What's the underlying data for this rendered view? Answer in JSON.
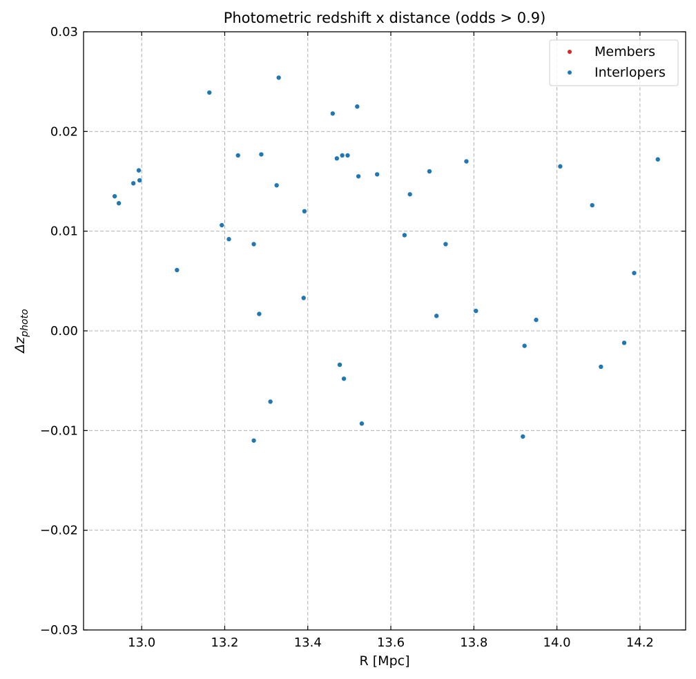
{
  "chart_data": {
    "type": "scatter",
    "title": "Photometric redshift x distance (odds > 0.9)",
    "xlabel": "R [Mpc]",
    "ylabel": "Δz",
    "ylabel_subscript": "photo",
    "xlim": [
      12.86,
      14.31
    ],
    "ylim": [
      -0.03,
      0.03
    ],
    "x_ticks": [
      13.0,
      13.2,
      13.4,
      13.6,
      13.8,
      14.0,
      14.2
    ],
    "x_tick_labels": [
      "13.0",
      "13.2",
      "13.4",
      "13.6",
      "13.8",
      "14.0",
      "14.2"
    ],
    "y_ticks": [
      -0.03,
      -0.02,
      -0.01,
      0.0,
      0.01,
      0.02,
      0.03
    ],
    "y_tick_labels": [
      "−0.03",
      "−0.02",
      "−0.01",
      "0.00",
      "0.01",
      "0.02",
      "0.03"
    ],
    "grid": true,
    "legend_position": "top-right",
    "series": [
      {
        "name": "Members",
        "color": "#d62728",
        "points": []
      },
      {
        "name": "Interlopers",
        "color": "#1f77b4",
        "points": [
          [
            12.935,
            0.0135
          ],
          [
            12.945,
            0.0128
          ],
          [
            12.98,
            0.0148
          ],
          [
            12.993,
            0.0161
          ],
          [
            12.995,
            0.0151
          ],
          [
            13.085,
            0.0061
          ],
          [
            13.163,
            0.0239
          ],
          [
            13.193,
            0.0106
          ],
          [
            13.21,
            0.0092
          ],
          [
            13.232,
            0.0176
          ],
          [
            13.27,
            0.0087
          ],
          [
            13.27,
            -0.011
          ],
          [
            13.283,
            0.0017
          ],
          [
            13.288,
            0.0177
          ],
          [
            13.31,
            -0.0071
          ],
          [
            13.325,
            0.0146
          ],
          [
            13.33,
            0.0254
          ],
          [
            13.39,
            0.0033
          ],
          [
            13.392,
            0.012
          ],
          [
            13.46,
            0.0218
          ],
          [
            13.47,
            0.0173
          ],
          [
            13.477,
            -0.0034
          ],
          [
            13.483,
            0.0176
          ],
          [
            13.487,
            -0.0048
          ],
          [
            13.496,
            0.0176
          ],
          [
            13.519,
            0.0225
          ],
          [
            13.522,
            0.0155
          ],
          [
            13.53,
            -0.0093
          ],
          [
            13.567,
            0.0157
          ],
          [
            13.633,
            0.0096
          ],
          [
            13.646,
            0.0137
          ],
          [
            13.693,
            0.016
          ],
          [
            13.71,
            0.0015
          ],
          [
            13.732,
            0.0087
          ],
          [
            13.782,
            0.017
          ],
          [
            13.805,
            0.002
          ],
          [
            13.918,
            -0.0106
          ],
          [
            13.922,
            -0.0015
          ],
          [
            13.95,
            0.0011
          ],
          [
            14.008,
            0.0165
          ],
          [
            14.085,
            0.0126
          ],
          [
            14.106,
            -0.0036
          ],
          [
            14.162,
            -0.0012
          ],
          [
            14.186,
            0.0058
          ],
          [
            14.243,
            0.0172
          ]
        ]
      }
    ]
  }
}
